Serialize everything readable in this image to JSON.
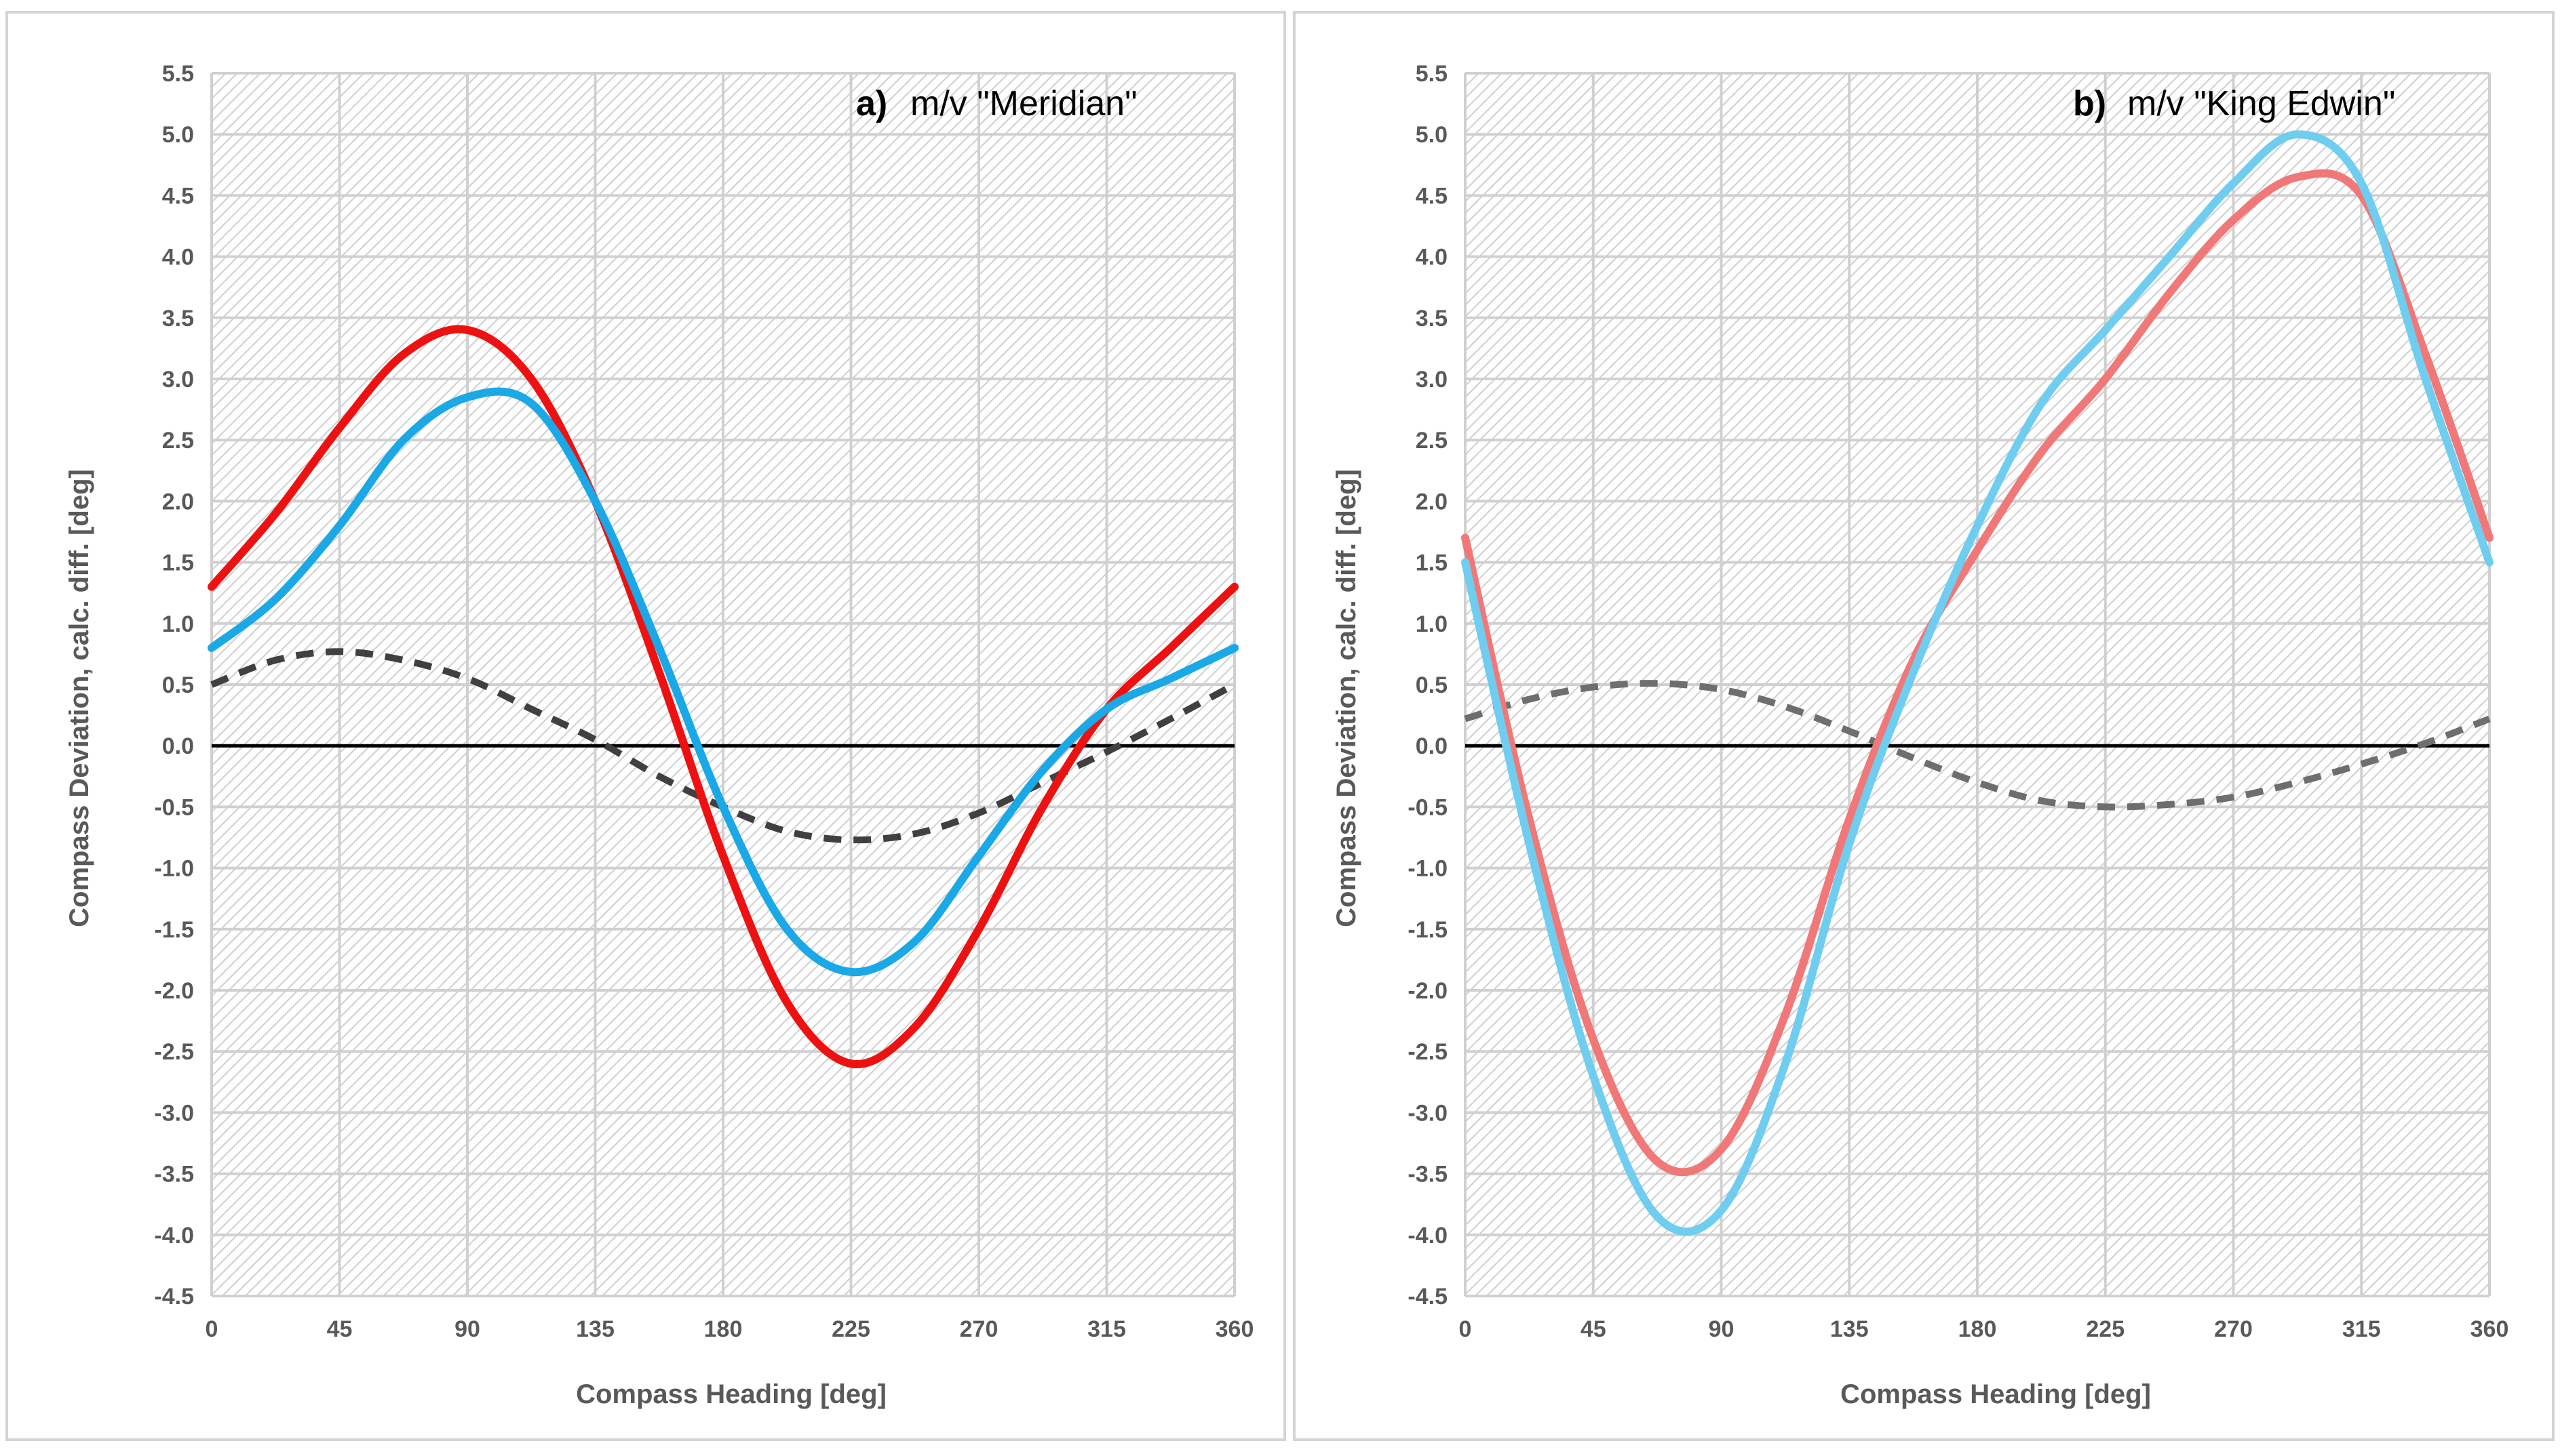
{
  "colors": {
    "background": "#ffffff",
    "grid": "#d0d0d0",
    "hatch": "#c8c8c8",
    "axis_text": "#595959",
    "zero_line": "#000000",
    "red": "#ee1111",
    "blue": "#1aa8e6",
    "red_light": "#f07878",
    "blue_light": "#6fcdf0",
    "dashed": "#404040",
    "dashed_light": "#6e6e6e"
  },
  "chart_data": [
    {
      "id": "a",
      "type": "line",
      "title_letter": "a)",
      "title_text": "m/v \"Meridian\"",
      "xlabel": "Compass Heading [deg]",
      "ylabel": "Compass Deviation, calc. diff. [deg]",
      "xlim": [
        0,
        360
      ],
      "ylim": [
        -4.5,
        5.5
      ],
      "xticks": [
        "0",
        "45",
        "90",
        "135",
        "180",
        "225",
        "270",
        "315",
        "360"
      ],
      "yticks": [
        "5.5",
        "5.0",
        "4.5",
        "4.0",
        "3.5",
        "3.0",
        "2.5",
        "2.0",
        "1.5",
        "1.0",
        "0.5",
        "0.0",
        "-0.5",
        "-1.0",
        "-1.5",
        "-2.0",
        "-2.5",
        "-3.0",
        "-3.5",
        "-4.0",
        "-4.5"
      ],
      "grid": true,
      "series": [
        {
          "name": "red",
          "color": "#ee1111",
          "dashed": false,
          "x": [
            0,
            22.5,
            45,
            67.5,
            90,
            112.5,
            135,
            157.5,
            180,
            202.5,
            225,
            247.5,
            270,
            292.5,
            315,
            337.5,
            360
          ],
          "y": [
            1.3,
            1.9,
            2.6,
            3.2,
            3.4,
            3.0,
            2.0,
            0.6,
            -0.9,
            -2.1,
            -2.6,
            -2.3,
            -1.5,
            -0.5,
            0.3,
            0.8,
            1.3
          ]
        },
        {
          "name": "blue",
          "color": "#1aa8e6",
          "dashed": false,
          "x": [
            0,
            22.5,
            45,
            67.5,
            90,
            112.5,
            135,
            157.5,
            180,
            202.5,
            225,
            247.5,
            270,
            292.5,
            315,
            337.5,
            360
          ],
          "y": [
            0.8,
            1.2,
            1.8,
            2.5,
            2.85,
            2.8,
            2.0,
            0.8,
            -0.5,
            -1.5,
            -1.85,
            -1.6,
            -0.9,
            -0.2,
            0.3,
            0.55,
            0.8
          ]
        },
        {
          "name": "dashed",
          "color": "#404040",
          "dashed": true,
          "x": [
            0,
            22.5,
            45,
            67.5,
            90,
            112.5,
            135,
            157.5,
            180,
            202.5,
            225,
            247.5,
            270,
            292.5,
            315,
            337.5,
            360
          ],
          "y": [
            0.5,
            0.7,
            0.77,
            0.7,
            0.55,
            0.3,
            0.05,
            -0.25,
            -0.5,
            -0.7,
            -0.77,
            -0.72,
            -0.55,
            -0.3,
            -0.05,
            0.22,
            0.5
          ]
        }
      ],
      "zero_line": true
    },
    {
      "id": "b",
      "type": "line",
      "title_letter": "b)",
      "title_text": "m/v \"King Edwin\"",
      "xlabel": "Compass Heading [deg]",
      "ylabel": "Compass Deviation, calc. diff. [deg]",
      "xlim": [
        0,
        360
      ],
      "ylim": [
        -4.5,
        5.5
      ],
      "xticks": [
        "0",
        "45",
        "90",
        "135",
        "180",
        "225",
        "270",
        "315",
        "360"
      ],
      "yticks": [
        "5.5",
        "5.0",
        "4.5",
        "4.0",
        "3.5",
        "3.0",
        "2.5",
        "2.0",
        "1.5",
        "1.0",
        "0.5",
        "0.0",
        "-0.5",
        "-1.0",
        "-1.5",
        "-2.0",
        "-2.5",
        "-3.0",
        "-3.5",
        "-4.0",
        "-4.5"
      ],
      "grid": true,
      "series": [
        {
          "name": "red",
          "color": "#f07878",
          "dashed": false,
          "x": [
            0,
            22.5,
            45,
            67.5,
            90,
            112.5,
            135,
            157.5,
            180,
            202.5,
            225,
            247.5,
            270,
            292.5,
            315,
            337.5,
            360
          ],
          "y": [
            1.7,
            -0.6,
            -2.4,
            -3.4,
            -3.3,
            -2.2,
            -0.6,
            0.7,
            1.6,
            2.4,
            3.0,
            3.7,
            4.3,
            4.65,
            4.5,
            3.2,
            1.7
          ]
        },
        {
          "name": "blue",
          "color": "#6fcdf0",
          "dashed": false,
          "x": [
            0,
            22.5,
            45,
            67.5,
            90,
            112.5,
            135,
            157.5,
            180,
            202.5,
            225,
            247.5,
            270,
            292.5,
            315,
            337.5,
            360
          ],
          "y": [
            1.5,
            -0.8,
            -2.7,
            -3.85,
            -3.8,
            -2.6,
            -0.8,
            0.6,
            1.8,
            2.8,
            3.4,
            4.0,
            4.6,
            5.0,
            4.6,
            3.0,
            1.5
          ]
        },
        {
          "name": "dashed",
          "color": "#6e6e6e",
          "dashed": true,
          "x": [
            0,
            22.5,
            45,
            67.5,
            90,
            112.5,
            135,
            157.5,
            180,
            202.5,
            225,
            247.5,
            270,
            292.5,
            315,
            337.5,
            360
          ],
          "y": [
            0.22,
            0.38,
            0.48,
            0.51,
            0.46,
            0.32,
            0.12,
            -0.1,
            -0.3,
            -0.45,
            -0.5,
            -0.48,
            -0.42,
            -0.3,
            -0.15,
            0.02,
            0.22
          ]
        }
      ],
      "zero_line": true
    }
  ]
}
